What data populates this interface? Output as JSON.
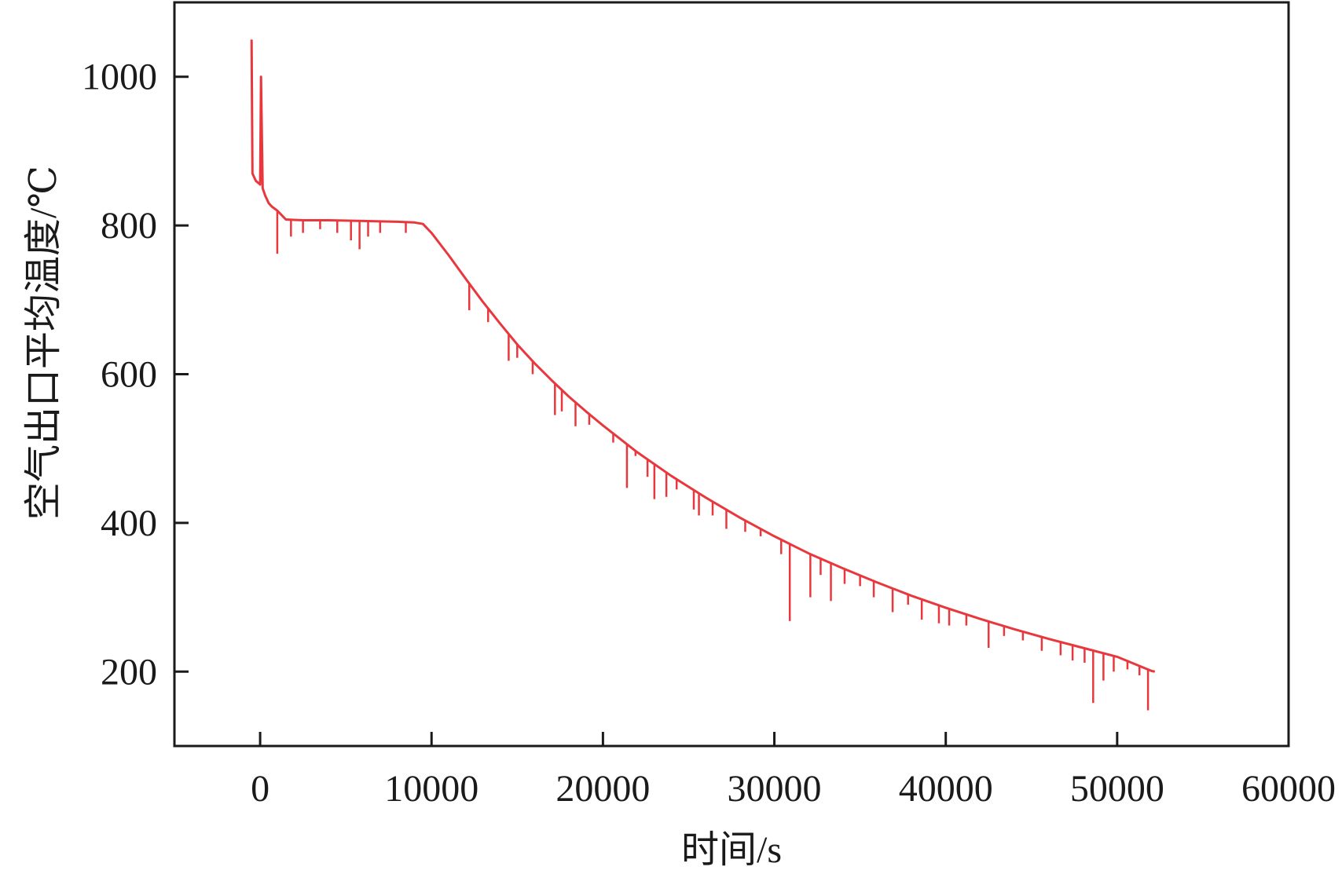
{
  "chart_data": {
    "type": "line",
    "xlabel": "时间/s",
    "ylabel": "空气出口平均温度/℃",
    "xlim": [
      -5000,
      60000
    ],
    "ylim": [
      100,
      1100
    ],
    "x_ticks": [
      0,
      10000,
      20000,
      30000,
      40000,
      50000,
      60000
    ],
    "y_ticks": [
      200,
      400,
      600,
      800,
      1000
    ],
    "x_tick_labels": [
      "0",
      "10000",
      "20000",
      "30000",
      "40000",
      "50000",
      "60000"
    ],
    "y_tick_labels": [
      "200",
      "400",
      "600",
      "800",
      "1000"
    ],
    "grid": false,
    "legend": "none",
    "series": [
      {
        "color": "#e8383d",
        "x": [
          -500,
          -450,
          -350,
          -250,
          0,
          50,
          150,
          300,
          500,
          700,
          1000,
          1500,
          2500,
          4000,
          6000,
          8000,
          9000,
          9500,
          10000,
          11000,
          12000,
          13000,
          14000,
          15000,
          16000,
          17000,
          18000,
          19000,
          20000,
          22000,
          24000,
          26000,
          28000,
          30000,
          32000,
          34000,
          36000,
          38000,
          40000,
          42000,
          44000,
          46000,
          48000,
          50000,
          52000,
          52200
        ],
        "y": [
          1050,
          870,
          865,
          860,
          855,
          1000,
          850,
          840,
          830,
          825,
          820,
          808,
          807,
          807,
          806,
          805,
          804,
          802,
          790,
          760,
          728,
          697,
          668,
          640,
          615,
          592,
          570,
          550,
          531,
          495,
          463,
          434,
          407,
          382,
          359,
          339,
          320,
          302,
          286,
          271,
          257,
          244,
          232,
          220,
          201,
          200
        ]
      }
    ],
    "spikes": [
      {
        "x": 1000,
        "y": 762
      },
      {
        "x": 1800,
        "y": 785
      },
      {
        "x": 2500,
        "y": 790
      },
      {
        "x": 3500,
        "y": 795
      },
      {
        "x": 4500,
        "y": 790
      },
      {
        "x": 5300,
        "y": 780
      },
      {
        "x": 5800,
        "y": 768
      },
      {
        "x": 6300,
        "y": 785
      },
      {
        "x": 7000,
        "y": 790
      },
      {
        "x": 8500,
        "y": 790
      },
      {
        "x": 12200,
        "y": 686
      },
      {
        "x": 13300,
        "y": 670
      },
      {
        "x": 14500,
        "y": 618
      },
      {
        "x": 15000,
        "y": 622
      },
      {
        "x": 15900,
        "y": 600
      },
      {
        "x": 17200,
        "y": 545
      },
      {
        "x": 17600,
        "y": 550
      },
      {
        "x": 18400,
        "y": 530
      },
      {
        "x": 19200,
        "y": 532
      },
      {
        "x": 20600,
        "y": 508
      },
      {
        "x": 21400,
        "y": 447
      },
      {
        "x": 21900,
        "y": 490
      },
      {
        "x": 22600,
        "y": 462
      },
      {
        "x": 23000,
        "y": 432
      },
      {
        "x": 23700,
        "y": 435
      },
      {
        "x": 24300,
        "y": 445
      },
      {
        "x": 25300,
        "y": 418
      },
      {
        "x": 25600,
        "y": 410
      },
      {
        "x": 26400,
        "y": 410
      },
      {
        "x": 27200,
        "y": 392
      },
      {
        "x": 28300,
        "y": 388
      },
      {
        "x": 29200,
        "y": 382
      },
      {
        "x": 30400,
        "y": 358
      },
      {
        "x": 30900,
        "y": 268
      },
      {
        "x": 32100,
        "y": 300
      },
      {
        "x": 32700,
        "y": 330
      },
      {
        "x": 33300,
        "y": 295
      },
      {
        "x": 34100,
        "y": 318
      },
      {
        "x": 35000,
        "y": 315
      },
      {
        "x": 35800,
        "y": 300
      },
      {
        "x": 36900,
        "y": 280
      },
      {
        "x": 37800,
        "y": 290
      },
      {
        "x": 38600,
        "y": 270
      },
      {
        "x": 39600,
        "y": 265
      },
      {
        "x": 40200,
        "y": 262
      },
      {
        "x": 41200,
        "y": 262
      },
      {
        "x": 42500,
        "y": 232
      },
      {
        "x": 43400,
        "y": 248
      },
      {
        "x": 44500,
        "y": 242
      },
      {
        "x": 45600,
        "y": 228
      },
      {
        "x": 46700,
        "y": 222
      },
      {
        "x": 47400,
        "y": 215
      },
      {
        "x": 48100,
        "y": 212
      },
      {
        "x": 48600,
        "y": 158
      },
      {
        "x": 49200,
        "y": 188
      },
      {
        "x": 49800,
        "y": 200
      },
      {
        "x": 50600,
        "y": 203
      },
      {
        "x": 51300,
        "y": 195
      },
      {
        "x": 51800,
        "y": 148
      }
    ]
  }
}
